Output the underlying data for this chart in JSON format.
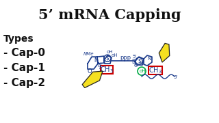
{
  "title": "5’ mRNA Capping",
  "title_fontsize": 15,
  "title_bg_color": "#fdf0e8",
  "body_bg_color": "#ffffff",
  "types_label": "Types",
  "cap_items": [
    "- Cap-0",
    "- Cap-1",
    "- Cap-2"
  ],
  "text_color": "#111111",
  "label_fontsize": 10,
  "item_fontsize": 11,
  "blue_color": "#1a3a8a",
  "red_box_color": "#cc0000",
  "green_circle_color": "#00aa44",
  "yellow_arrow": "#f5e020",
  "arrow_edge": "#222222"
}
